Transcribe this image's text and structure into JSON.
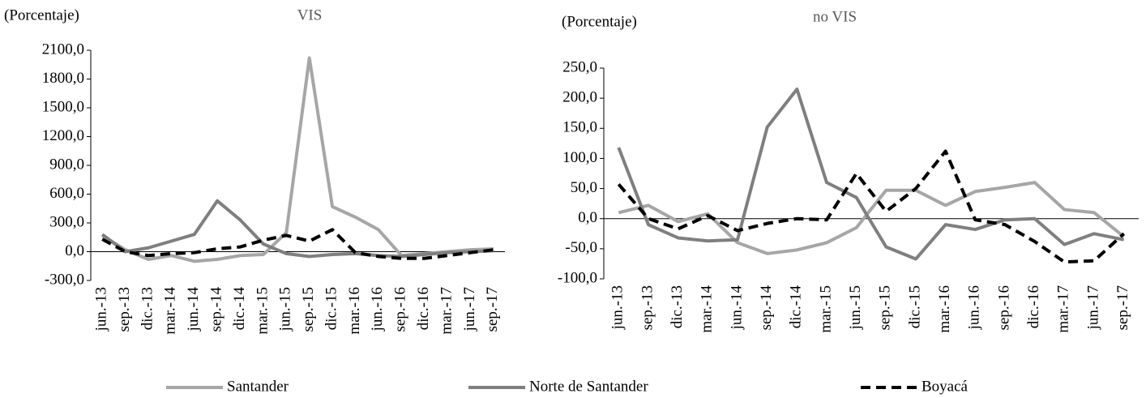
{
  "chart_data": [
    {
      "type": "line",
      "title": "VIS",
      "y_label": "(Porcentaje)",
      "categories": [
        "jun.-13",
        "sep.-13",
        "dic.-13",
        "mar.-14",
        "jun.-14",
        "sep.-14",
        "dic.-14",
        "mar.-15",
        "jun.-15",
        "sep.-15",
        "dic.-15",
        "mar.-16",
        "jun.-16",
        "sep.-16",
        "dic.-16",
        "mar.-17",
        "jun.-17",
        "sep.-17"
      ],
      "ylim": [
        -300,
        2100
      ],
      "yticks": [
        {
          "value": -300,
          "label": "-300,0"
        },
        {
          "value": 0,
          "label": "0,0"
        },
        {
          "value": 300,
          "label": "300,0"
        },
        {
          "value": 600,
          "label": "600,0"
        },
        {
          "value": 900,
          "label": "900,0"
        },
        {
          "value": 1200,
          "label": "1200,0"
        },
        {
          "value": 1500,
          "label": "1500,0"
        },
        {
          "value": 1800,
          "label": "1800,0"
        },
        {
          "value": 2100,
          "label": "2100,0"
        }
      ],
      "series": [
        {
          "name": "Santander",
          "color": "#a6a6a6",
          "dashed": false,
          "values": [
            170,
            20,
            -80,
            -40,
            -100,
            -80,
            -40,
            -30,
            200,
            2020,
            470,
            360,
            230,
            -40,
            -20,
            0,
            20,
            30
          ]
        },
        {
          "name": "Norte de Santander",
          "color": "#7f7f7f",
          "dashed": false,
          "values": [
            180,
            0,
            40,
            110,
            180,
            530,
            330,
            80,
            -20,
            -50,
            -30,
            -20,
            -40,
            -50,
            -30,
            -10,
            0,
            10
          ]
        },
        {
          "name": "Boyacá",
          "color": "#000000",
          "dashed": true,
          "values": [
            130,
            0,
            -40,
            -20,
            -10,
            30,
            50,
            120,
            170,
            110,
            230,
            -10,
            -50,
            -70,
            -70,
            -40,
            -10,
            20
          ]
        }
      ]
    },
    {
      "type": "line",
      "title": "no VIS",
      "y_label": "(Porcentaje)",
      "categories": [
        "jun.-13",
        "sep.-13",
        "dic.-13",
        "mar.-14",
        "jun.-14",
        "sep.-14",
        "dic.-14",
        "mar.-15",
        "jun.-15",
        "sep.-15",
        "dic.-15",
        "mar.-16",
        "jun.-16",
        "sep.-16",
        "dic.-16",
        "mar.-17",
        "jun.-17",
        "sep.-17"
      ],
      "ylim": [
        -100,
        250
      ],
      "yticks": [
        {
          "value": -100,
          "label": "-100,0"
        },
        {
          "value": -50,
          "label": "-50,0"
        },
        {
          "value": 0,
          "label": "0,0"
        },
        {
          "value": 50,
          "label": "50,0"
        },
        {
          "value": 100,
          "label": "100,0"
        },
        {
          "value": 150,
          "label": "150,0"
        },
        {
          "value": 200,
          "label": "200,0"
        },
        {
          "value": 250,
          "label": "250,0"
        }
      ],
      "series": [
        {
          "name": "Santander",
          "color": "#a6a6a6",
          "dashed": false,
          "values": [
            10,
            22,
            -5,
            8,
            -40,
            -58,
            -52,
            -40,
            -15,
            47,
            47,
            22,
            45,
            52,
            60,
            15,
            10,
            -30
          ]
        },
        {
          "name": "Norte de Santander",
          "color": "#7f7f7f",
          "dashed": false,
          "values": [
            118,
            -10,
            -32,
            -37,
            -35,
            152,
            215,
            60,
            35,
            -47,
            -67,
            -10,
            -18,
            -2,
            0,
            -43,
            -25,
            -35
          ]
        },
        {
          "name": "Boyacá",
          "color": "#000000",
          "dashed": true,
          "values": [
            57,
            0,
            -17,
            5,
            -20,
            -8,
            0,
            -2,
            75,
            12,
            50,
            112,
            -2,
            -10,
            -38,
            -72,
            -70,
            -25
          ]
        }
      ]
    }
  ]
}
